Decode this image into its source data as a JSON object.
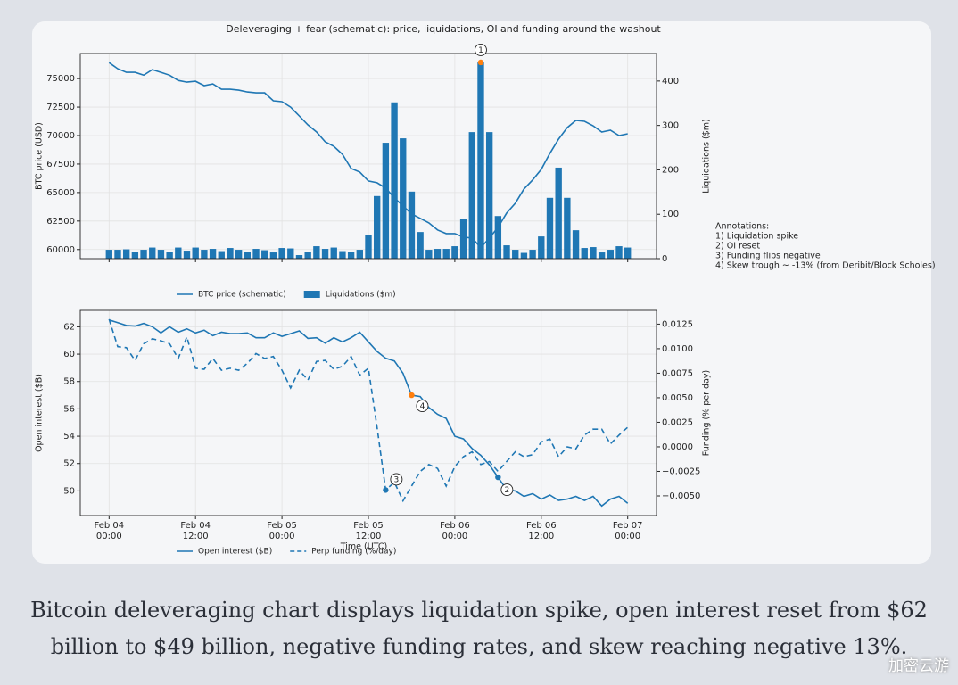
{
  "chart_data": [
    {
      "type": "combo",
      "title": "Deleveraging + fear (schematic): price, liquidations, OI and funding around the washout",
      "ylabel": "BTC price (USD)",
      "y2label": "Liquidations ($m)",
      "xlim": [
        -4,
        76
      ],
      "ylim": [
        59200,
        77200
      ],
      "y2lim": [
        0,
        462
      ],
      "yticks": [
        60000,
        62500,
        65000,
        67500,
        70000,
        72500,
        75000
      ],
      "y2ticks": [
        0,
        100,
        200,
        300,
        400
      ],
      "grid": true,
      "x": [
        0,
        1.2,
        2.4,
        3.6,
        4.8,
        6,
        7.2,
        8.4,
        9.6,
        10.8,
        12,
        13.2,
        14.4,
        15.6,
        16.8,
        18,
        19.2,
        20.4,
        21.6,
        22.8,
        24,
        25.2,
        26.4,
        27.6,
        28.8,
        30,
        31.2,
        32.4,
        33.6,
        34.8,
        36,
        37.2,
        38.4,
        39.6,
        40.8,
        42,
        43.2,
        44.4,
        45.6,
        46.8,
        48,
        49.2,
        50.4,
        51.6,
        52.8,
        54,
        55.2,
        56.4,
        57.6,
        58.8,
        60,
        61.2,
        62.4,
        63.6,
        64.8,
        66,
        67.2,
        68.4,
        69.6,
        70.8,
        72
      ],
      "series": [
        {
          "name": "BTC price (schematic)",
          "type": "line",
          "color": "#1f77b4",
          "axis": "y",
          "values": [
            76400,
            75860,
            75550,
            75550,
            75300,
            75780,
            75550,
            75300,
            74840,
            74690,
            74770,
            74380,
            74530,
            74060,
            74060,
            73980,
            73830,
            73750,
            73750,
            73050,
            72970,
            72500,
            71720,
            70940,
            70310,
            69450,
            69060,
            68360,
            67110,
            66800,
            66020,
            65860,
            65390,
            64530,
            63830,
            63130,
            62740,
            62340,
            61720,
            61400,
            61400,
            61090,
            61010,
            60160,
            61010,
            61950,
            63200,
            64060,
            65310,
            66100,
            67030,
            68440,
            69690,
            70700,
            71330,
            71250,
            70860,
            70310,
            70470,
            70000,
            70160
          ]
        },
        {
          "name": "Liquidations ($m)",
          "type": "bar",
          "color": "#1f77b4",
          "axis": "y2",
          "values": [
            20,
            20,
            21,
            16,
            20,
            25,
            20,
            15,
            25,
            18,
            25,
            20,
            22,
            17,
            24,
            20,
            16,
            22,
            19,
            14,
            24,
            23,
            8,
            16,
            28,
            22,
            25,
            17,
            16,
            20,
            54,
            141,
            261,
            352,
            271,
            151,
            60,
            20,
            22,
            22,
            28,
            90,
            285,
            442,
            285,
            96,
            30,
            20,
            13,
            20,
            50,
            137,
            205,
            137,
            64,
            24,
            26,
            14,
            20,
            28,
            25
          ]
        }
      ],
      "callouts": [
        {
          "text": "1",
          "x": 51.6,
          "y": 442,
          "axis": "y2",
          "color": "#ff7f0e"
        }
      ]
    },
    {
      "type": "combo",
      "xlabel": "Time (UTC)",
      "ylabel": "Open interest ($B)",
      "y2label": "Funding (% per day)",
      "xlim": [
        -4,
        76
      ],
      "ylim": [
        48.2,
        63.2
      ],
      "y2lim": [
        -0.007,
        0.0139
      ],
      "xticks": [
        {
          "value": 0,
          "label": "Feb 04 00:00"
        },
        {
          "value": 12,
          "label": "Feb 04 12:00"
        },
        {
          "value": 24,
          "label": "Feb 05 00:00"
        },
        {
          "value": 36,
          "label": "Feb 05 12:00"
        },
        {
          "value": 48,
          "label": "Feb 06 00:00"
        },
        {
          "value": 60,
          "label": "Feb 06 12:00"
        },
        {
          "value": 72,
          "label": "Feb 07 00:00"
        }
      ],
      "yticks": [
        50,
        52,
        54,
        56,
        58,
        60,
        62
      ],
      "y2ticks": [
        {
          "value": -0.005,
          "label": "−0.0050"
        },
        {
          "value": -0.0025,
          "label": "−0.0025"
        },
        {
          "value": 0,
          "label": "0.0000"
        },
        0.0025,
        {
          "value": 0.005,
          "label": "0.0050"
        },
        0.0075,
        {
          "value": 0.01,
          "label": "0.0100"
        },
        0.0125
      ],
      "grid": true,
      "x": [
        0,
        1.2,
        2.4,
        3.6,
        4.8,
        6,
        7.2,
        8.4,
        9.6,
        10.8,
        12,
        13.2,
        14.4,
        15.6,
        16.8,
        18,
        19.2,
        20.4,
        21.6,
        22.8,
        24,
        25.2,
        26.4,
        27.6,
        28.8,
        30,
        31.2,
        32.4,
        33.6,
        34.8,
        36,
        37.2,
        38.4,
        39.6,
        40.8,
        42,
        43.2,
        44.4,
        45.6,
        46.8,
        48,
        49.2,
        50.4,
        51.6,
        52.8,
        54,
        55.2,
        56.4,
        57.6,
        58.8,
        60,
        61.2,
        62.4,
        63.6,
        64.8,
        66,
        67.2,
        68.4,
        69.6,
        70.8,
        72
      ],
      "series": [
        {
          "name": "Open interest ($B)",
          "type": "line",
          "color": "#1f77b4",
          "axis": "y",
          "values": [
            62.5,
            62.3,
            62.1,
            62.05,
            62.25,
            62.0,
            61.55,
            62.0,
            61.6,
            61.85,
            61.55,
            61.75,
            61.35,
            61.6,
            61.5,
            61.5,
            61.55,
            61.2,
            61.2,
            61.55,
            61.3,
            61.5,
            61.7,
            61.15,
            61.2,
            60.8,
            61.2,
            60.9,
            61.2,
            61.6,
            60.9,
            60.2,
            59.7,
            59.5,
            58.6,
            57.0,
            56.9,
            56.1,
            55.6,
            55.3,
            54.0,
            53.8,
            53.1,
            52.6,
            51.9,
            51.0,
            50.1,
            50.0,
            49.6,
            49.8,
            49.4,
            49.7,
            49.3,
            49.4,
            49.6,
            49.3,
            49.6,
            48.9,
            49.4,
            49.6,
            49.1
          ]
        },
        {
          "name": "Perp funding (%/day)",
          "type": "line",
          "dashed": true,
          "color": "#1f77b4",
          "axis": "y2",
          "values": [
            0.013,
            0.0102,
            0.0101,
            0.0088,
            0.0105,
            0.011,
            0.0108,
            0.0105,
            0.009,
            0.0112,
            0.008,
            0.0079,
            0.009,
            0.0078,
            0.008,
            0.0078,
            0.0085,
            0.0095,
            0.009,
            0.0092,
            0.0078,
            0.006,
            0.0078,
            0.0068,
            0.0087,
            0.0088,
            0.0079,
            0.0082,
            0.0092,
            0.0073,
            0.008,
            0.002,
            -0.0044,
            -0.0036,
            -0.0055,
            -0.004,
            -0.0025,
            -0.0018,
            -0.0022,
            -0.004,
            -0.002,
            -0.001,
            -0.0005,
            -0.0018,
            -0.0015,
            -0.0025,
            -0.0015,
            -0.0005,
            -0.001,
            -0.0008,
            0.0005,
            0.0008,
            -0.001,
            0,
            -0.0002,
            0.0012,
            0.0018,
            0.0018,
            0.0003,
            0.0012,
            0.002
          ]
        }
      ],
      "callouts": [
        {
          "text": "4",
          "x": 42,
          "y": 57.0,
          "axis": "y",
          "color": "#ff7f0e"
        },
        {
          "text": "2",
          "x": 54,
          "y": 51.0,
          "axis": "y",
          "color": "#1f77b4"
        },
        {
          "text": "3",
          "x": 38.4,
          "y": -0.0044,
          "axis": "y2",
          "color": "#1f77b4"
        }
      ]
    }
  ],
  "notes": {
    "title": "Annotations:",
    "lines": [
      "1) Liquidation spike",
      "2) OI reset",
      "3) Funding flips negative",
      "4) Skew trough ~ -13% (from Deribit/Block Scholes)"
    ]
  },
  "caption": "Bitcoin deleveraging chart displays liquidation spike, open interest reset from $62 billion to $49 billion, negative funding rates, and skew reaching negative 13%.",
  "watermark": "加密云游"
}
